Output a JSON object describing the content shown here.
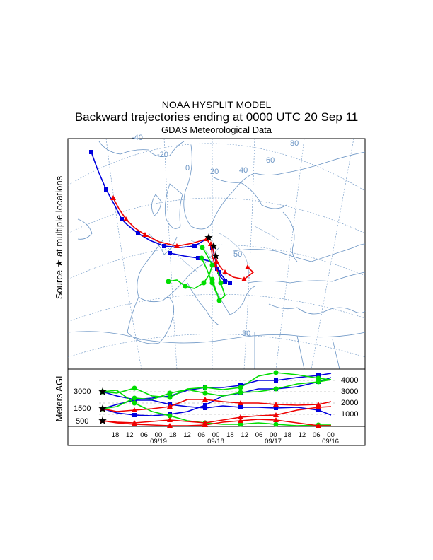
{
  "header": {
    "line1": "NOAA HYSPLIT MODEL",
    "line2": "Backward trajectories ending at 0000 UTC 20 Sep 11",
    "line3": "GDAS Meteorological Data"
  },
  "map": {
    "side_label": "Source ★ at multiple locations",
    "lon_labels": [
      "-40",
      "-20",
      "0",
      "20",
      "40",
      "60",
      "80"
    ],
    "lat_labels": [
      "50",
      "30"
    ]
  },
  "profile": {
    "ylabel": "Meters AGL",
    "left_ticks": [
      "3000",
      "1500",
      "500"
    ],
    "right_ticks": [
      "4000",
      "3000",
      "2000",
      "1000"
    ],
    "hour_ticks": [
      "18",
      "12",
      "06",
      "00",
      "18",
      "12",
      "06",
      "00",
      "18",
      "12",
      "06",
      "00",
      "18",
      "12",
      "06",
      "00"
    ],
    "date_labels": [
      "09/19",
      "09/18",
      "09/17",
      "09/16"
    ]
  },
  "colors": {
    "red": "#ee0000",
    "blue": "#0000dd",
    "green": "#00dd00",
    "map_line": "#6a94c4"
  }
}
